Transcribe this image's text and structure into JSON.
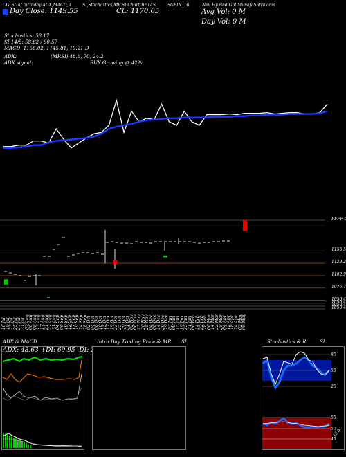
{
  "header": {
    "line1": [
      "CG_SDA/ Intraday ADX,MACD,R",
      "SI,Stochastics,MR",
      "SI Chart(BETAS",
      "SGFIN_16",
      "Nev Hy Bnd Gbl MunafaSutra.com"
    ],
    "box_label": "CG",
    "close_line": "Day Close: 1149.55",
    "cl": "CL: 1170.05",
    "avg_vol": "Avg Vol: 0 M",
    "day_vol": "Day Vol: 0 M"
  },
  "indicators": {
    "stochastics": "Stochastics: 58.17",
    "si": "SI 14/5: 58.62 / 60.57",
    "macd": "MACD: 1156.02, 1145.81, 10.21 D",
    "adx": "ADX:",
    "mrsi": "(MRSI) 48.6, 70, 24.2",
    "adx_signal": "ADX signal:",
    "buy": "BUY Growing @ 42%"
  },
  "price_labels": [
    {
      "text": "FFFF 58",
      "v": 1221.0
    },
    {
      "text": "1155.5",
      "v": 1155.5
    },
    {
      "text": "1129.23",
      "v": 1129.23
    },
    {
      "text": "1102.97",
      "v": 1102.97
    },
    {
      "text": "1076.71",
      "v": 1076.71
    },
    {
      "text": "1050.45",
      "v": 1050.45
    },
    {
      "text": "1050.45",
      "v": 1044.0
    },
    {
      "text": "1050.45",
      "v": 1038.0
    },
    {
      "text": "1050.45",
      "v": 1032.0
    }
  ],
  "dates": [
    "16 Jul",
    "19 Jul",
    "23 Jul",
    "25 Jul",
    "27 Jul",
    "31 Jul",
    "02 Aug",
    "06 Aug",
    "08 Aug",
    "13 Aug",
    "17 Aug",
    "21 Aug",
    "27 Aug",
    "31 Aug",
    "04 Sep",
    "06 Sep",
    "10 Sep",
    "12 Sep",
    "17 Sep",
    "19 Sep",
    "24 Sep",
    "28 Sep",
    "02 Oct",
    "04 Oct",
    "08 Oct",
    "10 Oct",
    "15 Oct",
    "17 Oct",
    "19 Oct",
    "23 Oct",
    "25 Oct",
    "29 Oct",
    "31 Oct",
    "02 Nov",
    "06 Nov",
    "13 Nov",
    "20 Nov",
    "28 Nov",
    "04 Dec",
    "08 Dec",
    "14 Dec",
    "20 Dec",
    "29 Dec",
    "03 Jan",
    "09 Jan",
    "15 Jan",
    "19 Jan",
    "25 Jan",
    "31 Jan",
    "06 Feb",
    "14 Feb",
    "22 Feb",
    "28 Feb",
    "06 Mar",
    "14 Mar",
    "22 Mar",
    "28 Mar",
    "04 Apr",
    "12 Apr",
    "18 Apr",
    "24 Apr",
    "02 May",
    "08 May"
  ],
  "bottom": {
    "adx_title": "ADX  & MACD",
    "adx_values": "ADX: 48.63  +DI: 69.95  -DI: 24.18",
    "intraday_title": "Intra  Day Trading Price  & MR",
    "intraday_si": "SI",
    "stoch_title": "Stochastics & R",
    "stoch_si": "SI",
    "stoch_levels": [
      "80",
      "50",
      "20"
    ],
    "rsi_levels": [
      "55",
      "50",
      "45"
    ],
    "rsi_value": "45.6"
  },
  "colors": {
    "blue_line": "#1a3cff",
    "white_line": "#ffffff",
    "up": "#00cc00",
    "down": "#ee0000",
    "mrsi_fill": "#8b0000"
  },
  "chart_data": {
    "type": "line",
    "description_free": true,
    "series": [
      {
        "name": "MRSI",
        "values": [
          10,
          10,
          12,
          12,
          18,
          18,
          15,
          35,
          20,
          8,
          15,
          22,
          28,
          30,
          40,
          75,
          30,
          60,
          45,
          50,
          48,
          70,
          45,
          40,
          60,
          45,
          40,
          55,
          55,
          55,
          56,
          55,
          57,
          57,
          57,
          58,
          56,
          57,
          58,
          58,
          56,
          56,
          58,
          70
        ]
      },
      {
        "name": "MRSI signal",
        "values": [
          8,
          8,
          9,
          10,
          12,
          12,
          16,
          18,
          19,
          20,
          21,
          22,
          24,
          28,
          35,
          38,
          40,
          42,
          45,
          47,
          48,
          49,
          50,
          50,
          51,
          51,
          51,
          51,
          52,
          52,
          52,
          53,
          53,
          54,
          54,
          55,
          55,
          55,
          56,
          56,
          56,
          56,
          57,
          60
        ]
      }
    ],
    "candles": [
      {
        "o": 1084,
        "c": 1095,
        "dir": "up"
      },
      {
        "o": 1221,
        "c": 1198,
        "dir": "down"
      },
      {
        "o": 1136,
        "c": 1128,
        "dir": "down"
      },
      {
        "o": 1142,
        "c": 1146,
        "dir": "up"
      }
    ]
  }
}
